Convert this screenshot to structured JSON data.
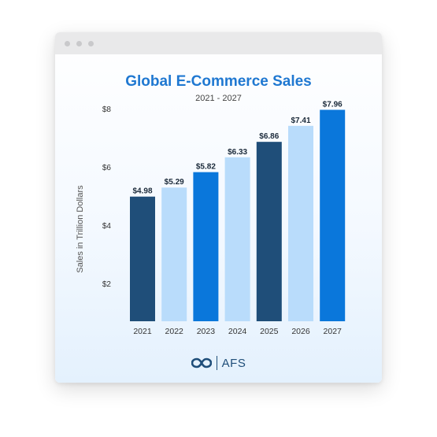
{
  "window": {
    "controls": [
      "close-dot",
      "minimize-dot",
      "maximize-dot"
    ]
  },
  "footer": {
    "brand": "AFS",
    "logo_icon": "infinity-link-icon"
  },
  "colors": {
    "dark": "#1f4e79",
    "light": "#b9dcfb",
    "blue": "#0a77db",
    "title": "#1f78d1"
  },
  "chart_data": {
    "type": "bar",
    "title": "Global E-Commerce Sales",
    "subtitle": "2021 - 2027",
    "ylabel": "Sales in Trillion Dollars",
    "xlabel": "",
    "categories": [
      "2021",
      "2022",
      "2023",
      "2024",
      "2025",
      "2026",
      "2027"
    ],
    "values": [
      4.98,
      5.29,
      5.82,
      6.33,
      6.86,
      7.41,
      7.96
    ],
    "value_labels": [
      "$4.98",
      "$5.29",
      "$5.82",
      "$6.33",
      "$6.86",
      "$7.41",
      "$7.96"
    ],
    "bar_colors": [
      "#1f4e79",
      "#b9dcfb",
      "#0a77db",
      "#b9dcfb",
      "#1f4e79",
      "#b9dcfb",
      "#0a77db"
    ],
    "yticks": [
      2,
      4,
      6,
      8
    ],
    "ytick_labels": [
      "$2",
      "$4",
      "$6",
      "$8"
    ],
    "ylim": [
      0.7,
      8.0
    ],
    "grid": false,
    "legend": "none"
  }
}
